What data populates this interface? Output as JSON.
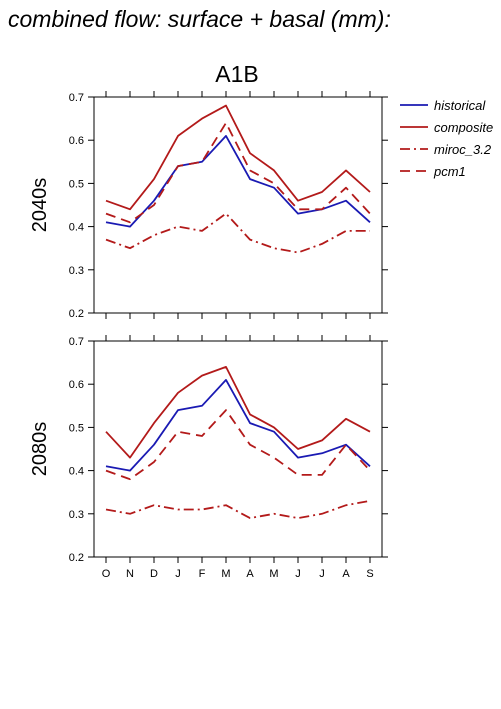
{
  "title": "combined flow: surface + basal (mm):",
  "scenario": "A1B",
  "legend": [
    {
      "name": "historical",
      "color": "#1a1ab3",
      "dash": "solid"
    },
    {
      "name": "composite",
      "color": "#b31a1a",
      "dash": "solid"
    },
    {
      "name": "miroc_3.2",
      "color": "#b31a1a",
      "dash": "dashdot"
    },
    {
      "name": "pcm1",
      "color": "#b31a1a",
      "dash": "dashed"
    }
  ],
  "chart_data": [
    {
      "type": "line",
      "panel_label": "2040s",
      "categories": [
        "O",
        "N",
        "D",
        "J",
        "F",
        "M",
        "A",
        "M",
        "J",
        "J",
        "A",
        "S"
      ],
      "ylim": [
        0.2,
        0.7
      ],
      "yticks": [
        "0.2",
        "0.3",
        "0.4",
        "0.5",
        "0.6",
        "0.7"
      ],
      "series": [
        {
          "name": "historical",
          "values": [
            0.41,
            0.4,
            0.46,
            0.54,
            0.55,
            0.61,
            0.51,
            0.49,
            0.43,
            0.44,
            0.46,
            0.41
          ]
        },
        {
          "name": "composite",
          "values": [
            0.46,
            0.44,
            0.51,
            0.61,
            0.65,
            0.68,
            0.57,
            0.53,
            0.46,
            0.48,
            0.53,
            0.48
          ]
        },
        {
          "name": "miroc_3.2",
          "values": [
            0.37,
            0.35,
            0.38,
            0.4,
            0.39,
            0.43,
            0.37,
            0.35,
            0.34,
            0.36,
            0.39,
            0.39
          ]
        },
        {
          "name": "pcm1",
          "values": [
            0.43,
            0.41,
            0.45,
            0.54,
            0.55,
            0.64,
            0.53,
            0.5,
            0.44,
            0.44,
            0.49,
            0.43
          ]
        }
      ]
    },
    {
      "type": "line",
      "panel_label": "2080s",
      "categories": [
        "O",
        "N",
        "D",
        "J",
        "F",
        "M",
        "A",
        "M",
        "J",
        "J",
        "A",
        "S"
      ],
      "ylim": [
        0.2,
        0.7
      ],
      "yticks": [
        "0.2",
        "0.3",
        "0.4",
        "0.5",
        "0.6",
        "0.7"
      ],
      "series": [
        {
          "name": "historical",
          "values": [
            0.41,
            0.4,
            0.46,
            0.54,
            0.55,
            0.61,
            0.51,
            0.49,
            0.43,
            0.44,
            0.46,
            0.41
          ]
        },
        {
          "name": "composite",
          "values": [
            0.49,
            0.43,
            0.51,
            0.58,
            0.62,
            0.64,
            0.53,
            0.5,
            0.45,
            0.47,
            0.52,
            0.49
          ]
        },
        {
          "name": "miroc_3.2",
          "values": [
            0.31,
            0.3,
            0.32,
            0.31,
            0.31,
            0.32,
            0.29,
            0.3,
            0.29,
            0.3,
            0.32,
            0.33
          ]
        },
        {
          "name": "pcm1",
          "values": [
            0.4,
            0.38,
            0.42,
            0.49,
            0.48,
            0.54,
            0.46,
            0.43,
            0.39,
            0.39,
            0.46,
            0.4
          ]
        }
      ]
    }
  ]
}
